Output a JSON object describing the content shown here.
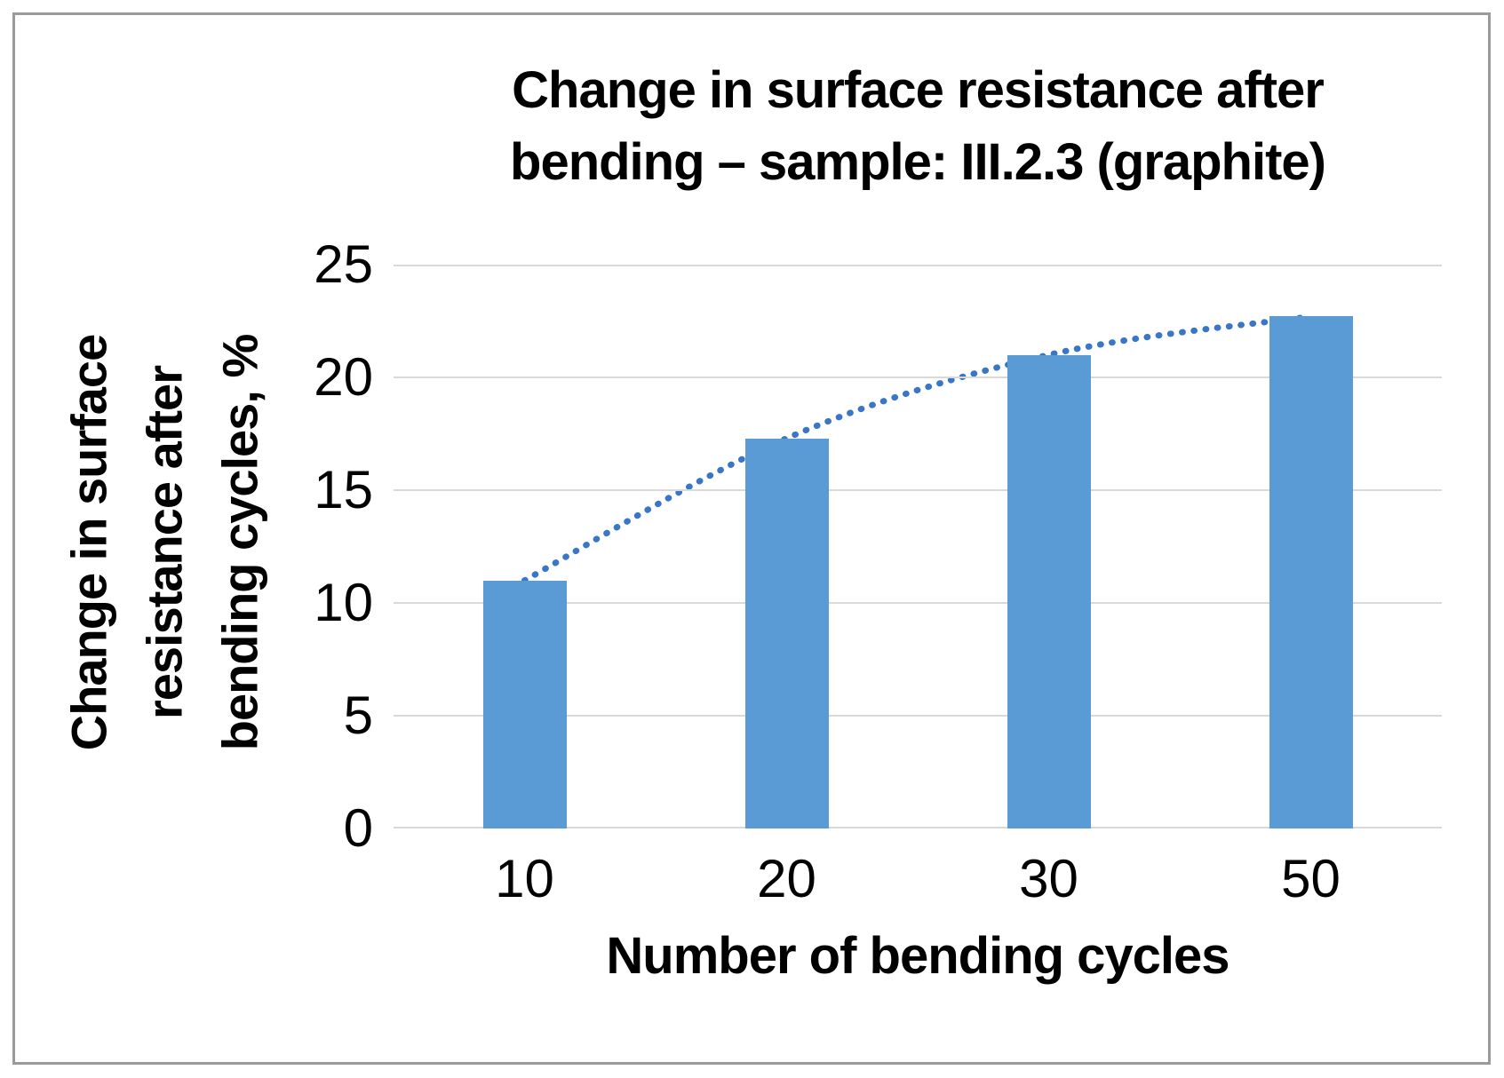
{
  "chart_data": {
    "type": "bar",
    "title": "Change in surface resistance after bending – sample: III.2.3 (graphite)",
    "title_lines": [
      "Change in surface resistance after",
      "bending – sample: III.2.3 (graphite)"
    ],
    "categories": [
      "10",
      "20",
      "30",
      "50"
    ],
    "values": [
      11,
      17.3,
      21,
      22.7
    ],
    "xlabel": "Number of bending cycles",
    "ylabel": "Change in surface resistance after bending cycles, %",
    "ylabel_lines": [
      "Change in surface",
      "resistance after",
      "bending cycles, %"
    ],
    "ylim": [
      0,
      25
    ],
    "yticks": [
      0,
      5,
      10,
      15,
      20,
      25
    ],
    "grid": "horizontal",
    "legend": "none",
    "trendline": {
      "type": "polynomial",
      "style": "dotted",
      "through_values": [
        11,
        17.3,
        21,
        22.7
      ]
    },
    "colors": {
      "bar": "#5B9BD5",
      "trendline": "#3A76C6",
      "gridline": "#D9D9D9",
      "text": "#000000",
      "frame_border": "#9A9A9A",
      "background": "#FFFFFF"
    }
  }
}
